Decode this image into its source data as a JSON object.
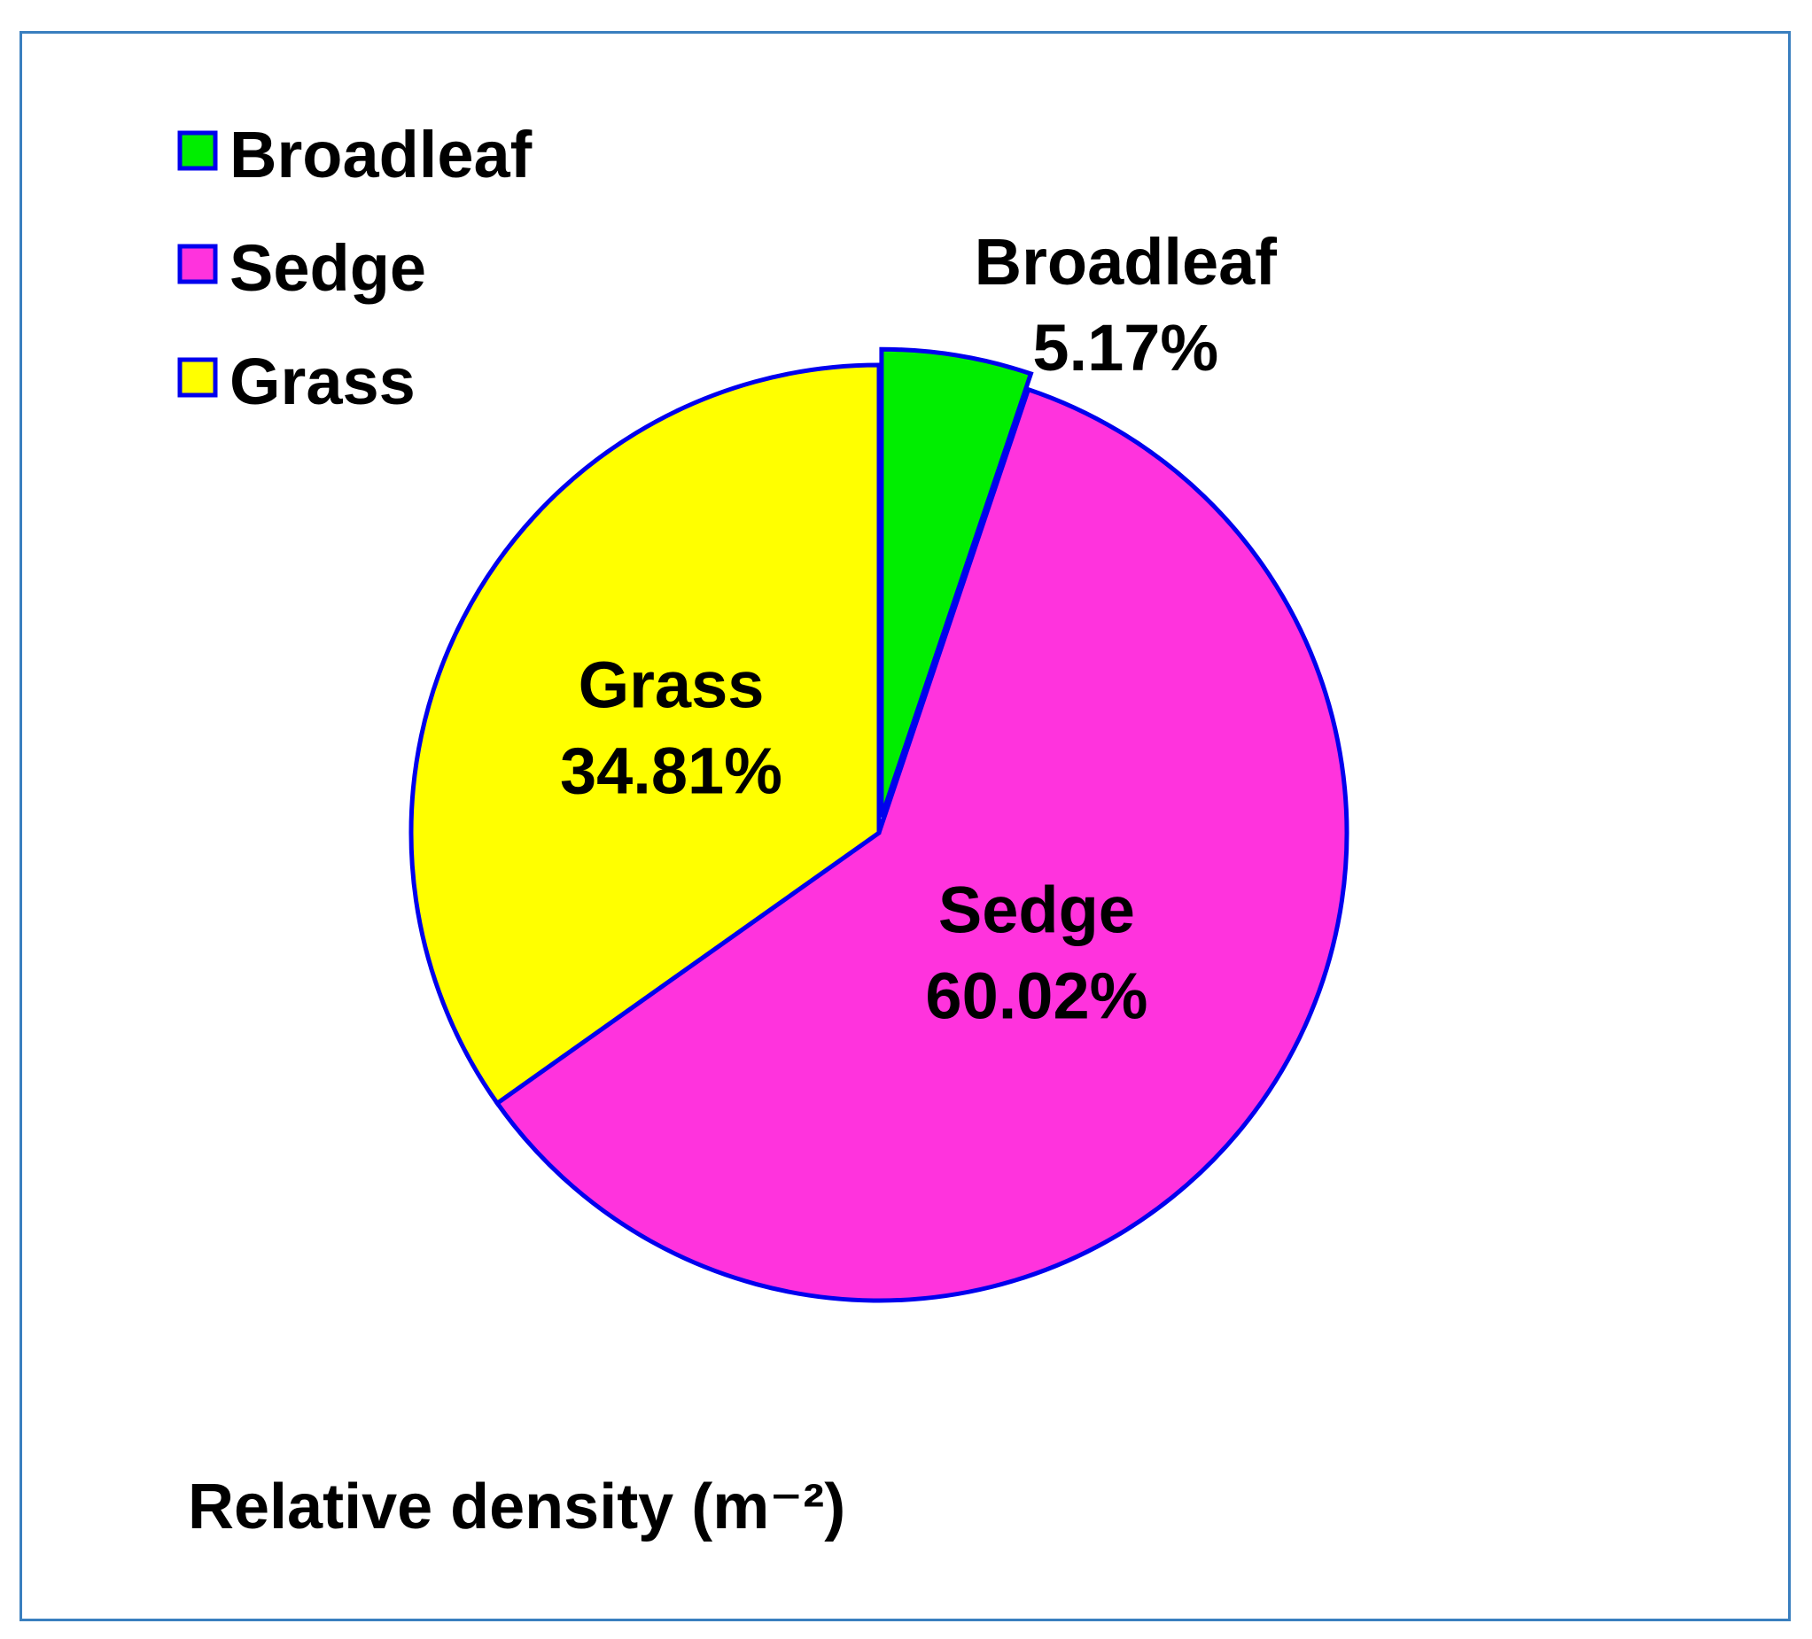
{
  "chart_data": {
    "type": "pie",
    "title": "Relative density (m⁻²)",
    "slices": [
      {
        "name": "Broadleaf",
        "label": "Broadleaf",
        "value": 5.17,
        "value_label": "5.17%",
        "color": "#00ee00",
        "exploded": true
      },
      {
        "name": "Sedge",
        "label": "Sedge",
        "value": 60.02,
        "value_label": "60.02%",
        "color": "#ff33dd",
        "exploded": false
      },
      {
        "name": "Grass",
        "label": "Grass",
        "value": 34.81,
        "value_label": "34.81%",
        "color": "#ffff00",
        "exploded": false
      }
    ],
    "legend": {
      "placement": "top-left",
      "entries": [
        "Broadleaf",
        "Sedge",
        "Grass"
      ]
    },
    "edge_color": "#0000ee"
  }
}
